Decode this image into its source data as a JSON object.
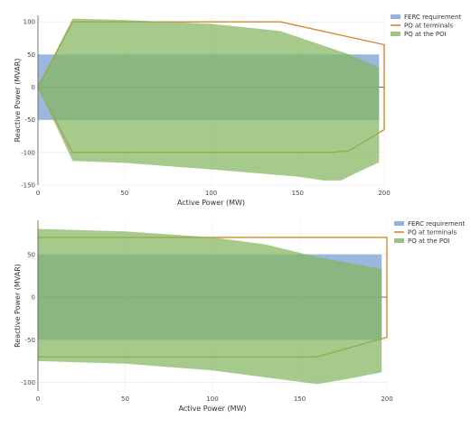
{
  "chart_data": [
    {
      "type": "area",
      "xlabel": "Active Power (MW)",
      "ylabel": "Reactive Power (MVAR)",
      "xlim": [
        0,
        200
      ],
      "ylim": [
        -150,
        110
      ],
      "x_ticks": [
        0,
        50,
        100,
        150,
        200
      ],
      "y_ticks": [
        -150,
        -100,
        -50,
        0,
        50,
        100
      ],
      "grid": true,
      "legend_position": "top-right",
      "colors": {
        "FERC requirement": "#7a9fd1",
        "PQ at terminals": "#d4882d",
        "PQ at the POI": "#84b55e"
      },
      "series": [
        {
          "name": "FERC requirement",
          "kind": "filled-polygon",
          "points": [
            [
              0,
              50
            ],
            [
              197,
              50
            ],
            [
              197,
              -50
            ],
            [
              0,
              -50
            ]
          ]
        },
        {
          "name": "PQ at terminals",
          "kind": "outline",
          "points": [
            [
              0,
              0
            ],
            [
              20,
              100
            ],
            [
              140,
              100
            ],
            [
              200,
              65
            ],
            [
              200,
              -65
            ],
            [
              180,
              -97
            ],
            [
              170,
              -100
            ],
            [
              20,
              -100
            ],
            [
              0,
              0
            ]
          ]
        },
        {
          "name": "PQ at the POI",
          "kind": "filled-polygon",
          "points": [
            [
              0,
              0
            ],
            [
              20,
              105
            ],
            [
              50,
              103
            ],
            [
              100,
              97
            ],
            [
              140,
              86
            ],
            [
              160,
              68
            ],
            [
              180,
              50
            ],
            [
              197,
              30
            ],
            [
              197,
              -115
            ],
            [
              185,
              -130
            ],
            [
              175,
              -143
            ],
            [
              165,
              -143
            ],
            [
              150,
              -137
            ],
            [
              100,
              -126
            ],
            [
              50,
              -116
            ],
            [
              20,
              -113
            ],
            [
              0,
              0
            ]
          ]
        }
      ]
    },
    {
      "type": "area",
      "xlabel": "Active Power (MW)",
      "ylabel": "Reactive Power (MVAR)",
      "xlim": [
        0,
        200
      ],
      "ylim": [
        -110,
        90
      ],
      "x_ticks": [
        0,
        50,
        100,
        150,
        200
      ],
      "y_ticks": [
        -100,
        -50,
        0,
        50
      ],
      "grid": true,
      "legend_position": "top-right",
      "colors": {
        "FERC requirement": "#7a9fd1",
        "PQ at terminals": "#d4882d",
        "PQ at the POI": "#84b55e"
      },
      "series": [
        {
          "name": "FERC requirement",
          "kind": "filled-polygon",
          "points": [
            [
              0,
              50
            ],
            [
              197,
              50
            ],
            [
              197,
              -50
            ],
            [
              0,
              -50
            ]
          ]
        },
        {
          "name": "PQ at terminals",
          "kind": "outline",
          "points": [
            [
              0,
              70
            ],
            [
              200,
              70
            ],
            [
              200,
              -47
            ],
            [
              160,
              -70
            ],
            [
              0,
              -70
            ]
          ]
        },
        {
          "name": "PQ at the POI",
          "kind": "filled-polygon",
          "points": [
            [
              0,
              80
            ],
            [
              50,
              77
            ],
            [
              100,
              70
            ],
            [
              130,
              62
            ],
            [
              160,
              47
            ],
            [
              197,
              33
            ],
            [
              197,
              -88
            ],
            [
              180,
              -95
            ],
            [
              160,
              -102
            ],
            [
              100,
              -86
            ],
            [
              50,
              -78
            ],
            [
              0,
              -75
            ]
          ]
        }
      ]
    }
  ]
}
